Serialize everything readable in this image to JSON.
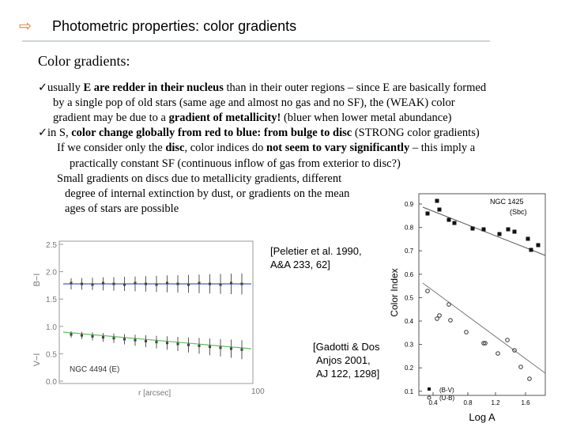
{
  "header": {
    "icon": "⇨",
    "title": "Photometric properties: color gradients"
  },
  "section_title": "Color gradients:",
  "lines": [
    {
      "bullet": "✓",
      "segments": [
        {
          "text": "usually "
        },
        {
          "text": "E are redder in their nucleus",
          "bold": true
        },
        {
          "text": " than in their outer regions – since E are basically formed"
        }
      ]
    },
    {
      "segments": [
        {
          "text": "by a single pop of old stars (same age and almost no gas and no SF), the (WEAK) color"
        }
      ]
    },
    {
      "segments": [
        {
          "text": "gradient may be due to a "
        },
        {
          "text": "gradient of metallicity!",
          "bold": true
        },
        {
          "text": " (bluer when lower metal abundance)"
        }
      ]
    },
    {
      "bullet": "✓",
      "segments": [
        {
          "text": "in S, "
        },
        {
          "text": "color change globally from red to blue: from bulge to disc",
          "bold": true
        },
        {
          "text": " (STRONG color gradients)"
        }
      ]
    },
    {
      "segments": [
        {
          "text": "If we consider only the "
        },
        {
          "text": "disc",
          "bold": true
        },
        {
          "text": ", color indices do "
        },
        {
          "text": "not seem to vary significantly",
          "bold": true
        },
        {
          "text": " – this imply a"
        }
      ]
    },
    {
      "segments": [
        {
          "text": "practically constant SF (continuous inflow of gas from exterior to disc?)"
        }
      ]
    },
    {
      "segments": [
        {
          "text": "Small gradients on discs due to metallicity gradients, different"
        }
      ]
    },
    {
      "segments": [
        {
          "text": "degree of internal extinction by dust, or gradients on the mean"
        }
      ]
    },
    {
      "segments": [
        {
          "text": "ages of stars are possible"
        }
      ]
    }
  ],
  "citations": [
    {
      "lines": [
        "[Peletier et al. 1990,",
        "A&A 233, 62]"
      ]
    },
    {
      "lines": [
        "[Gadotti & Dos",
        "Anjos 2001,",
        "AJ 122, 1298]"
      ]
    }
  ],
  "left_plot": {
    "yticks": [
      "2.5",
      "2.0",
      "1.5",
      "1.0",
      "0.5",
      "0.0"
    ],
    "upper_label": "B−I",
    "lower_label": "V−I",
    "xlabel": "r [arcsec]",
    "xtick": "100",
    "caption": "NGC 4494 (E)"
  },
  "right_plot": {
    "title": "NGC 1425",
    "subtitle": "(Sbc)",
    "yticks": [
      "0.9",
      "0.8",
      "0.7",
      "0.6",
      "0.5",
      "0.4",
      "0.3",
      "0.2",
      "0.1"
    ],
    "xticks": [
      "0.4",
      "0.8",
      "1.2",
      "1.6"
    ],
    "ylabel": "Color Index",
    "xlabel": "Log A",
    "legend": [
      "(B-V)",
      "(U-B)"
    ]
  }
}
